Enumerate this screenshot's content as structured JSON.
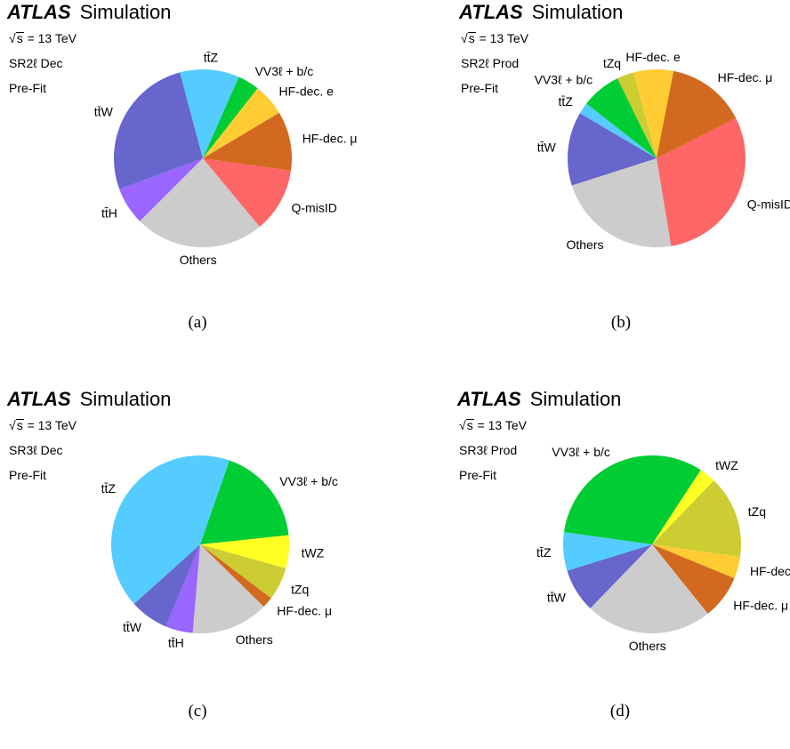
{
  "chart_data": [
    {
      "type": "pie",
      "title": "Simulation",
      "brand": "ATLAS",
      "energy": "= 13 TeV",
      "energy_symbol": "s",
      "region": "SR2ℓ Dec",
      "stage": "Pre-Fit",
      "caption": "(a)",
      "slices": [
        {
          "label": "Q-misID",
          "value": 0.12,
          "color": "#ff6666"
        },
        {
          "label": "Others",
          "value": 0.24,
          "color": "#cccccc"
        },
        {
          "label": "tt̄H",
          "value": 0.07,
          "color": "#9966ff"
        },
        {
          "label": "tt̄W",
          "value": 0.27,
          "color": "#6666cc"
        },
        {
          "label": "tt̄Z",
          "value": 0.11,
          "color": "#55ccff"
        },
        {
          "label": "VV3ℓ + b/c",
          "value": 0.04,
          "color": "#00cc33"
        },
        {
          "label": "HF-dec. e",
          "value": 0.06,
          "color": "#ffcc33"
        },
        {
          "label": "HF-dec. μ",
          "value": 0.11,
          "color": "#d2691e"
        }
      ]
    },
    {
      "type": "pie",
      "title": "Simulation",
      "brand": "ATLAS",
      "energy": "= 13 TeV",
      "energy_symbol": "s",
      "region": "SR2ℓ Prod",
      "stage": "Pre-Fit",
      "caption": "(b)",
      "slices": [
        {
          "label": "Q-misID",
          "value": 0.29,
          "color": "#ff6666"
        },
        {
          "label": "Others",
          "value": 0.22,
          "color": "#cccccc"
        },
        {
          "label": "tt̄W",
          "value": 0.13,
          "color": "#6666cc"
        },
        {
          "label": "tt̄Z",
          "value": 0.02,
          "color": "#55ccff"
        },
        {
          "label": "VV3ℓ + b/c",
          "value": 0.07,
          "color": "#00cc33"
        },
        {
          "label": "tZq",
          "value": 0.03,
          "color": "#cccc33"
        },
        {
          "label": "HF-dec. e",
          "value": 0.07,
          "color": "#ffcc33"
        },
        {
          "label": "HF-dec. μ",
          "value": 0.14,
          "color": "#d2691e"
        }
      ]
    },
    {
      "type": "pie",
      "title": "Simulation",
      "brand": "ATLAS",
      "energy": "= 13 TeV",
      "energy_symbol": "s",
      "region": "SR3ℓ Dec",
      "stage": "Pre-Fit",
      "caption": "(c)",
      "slices": [
        {
          "label": "tWZ",
          "value": 0.06,
          "color": "#ffff22"
        },
        {
          "label": "tZq",
          "value": 0.06,
          "color": "#cccc33"
        },
        {
          "label": "HF-dec. μ",
          "value": 0.02,
          "color": "#d2691e"
        },
        {
          "label": "Others",
          "value": 0.14,
          "color": "#cccccc"
        },
        {
          "label": "tt̄H",
          "value": 0.05,
          "color": "#9966ff"
        },
        {
          "label": "tt̄W",
          "value": 0.07,
          "color": "#6666cc"
        },
        {
          "label": "tt̄Z",
          "value": 0.42,
          "color": "#55ccff"
        },
        {
          "label": "VV3ℓ + b/c",
          "value": 0.18,
          "color": "#00cc33"
        }
      ]
    },
    {
      "type": "pie",
      "title": "Simulation",
      "brand": "ATLAS",
      "energy": "= 13 TeV",
      "energy_symbol": "s",
      "region": "SR3ℓ Prod",
      "stage": "Pre-Fit",
      "caption": "(d)",
      "slices": [
        {
          "label": "HF-dec. e",
          "value": 0.04,
          "color": "#ffcc33"
        },
        {
          "label": "HF-dec. μ",
          "value": 0.08,
          "color": "#d2691e"
        },
        {
          "label": "Others",
          "value": 0.23,
          "color": "#cccccc"
        },
        {
          "label": "tt̄W",
          "value": 0.08,
          "color": "#6666cc"
        },
        {
          "label": "tt̄Z",
          "value": 0.07,
          "color": "#55ccff"
        },
        {
          "label": "VV3ℓ + b/c",
          "value": 0.32,
          "color": "#00cc33"
        },
        {
          "label": "tWZ",
          "value": 0.03,
          "color": "#ffff22"
        },
        {
          "label": "tZq",
          "value": 0.15,
          "color": "#cccc33"
        }
      ]
    }
  ]
}
